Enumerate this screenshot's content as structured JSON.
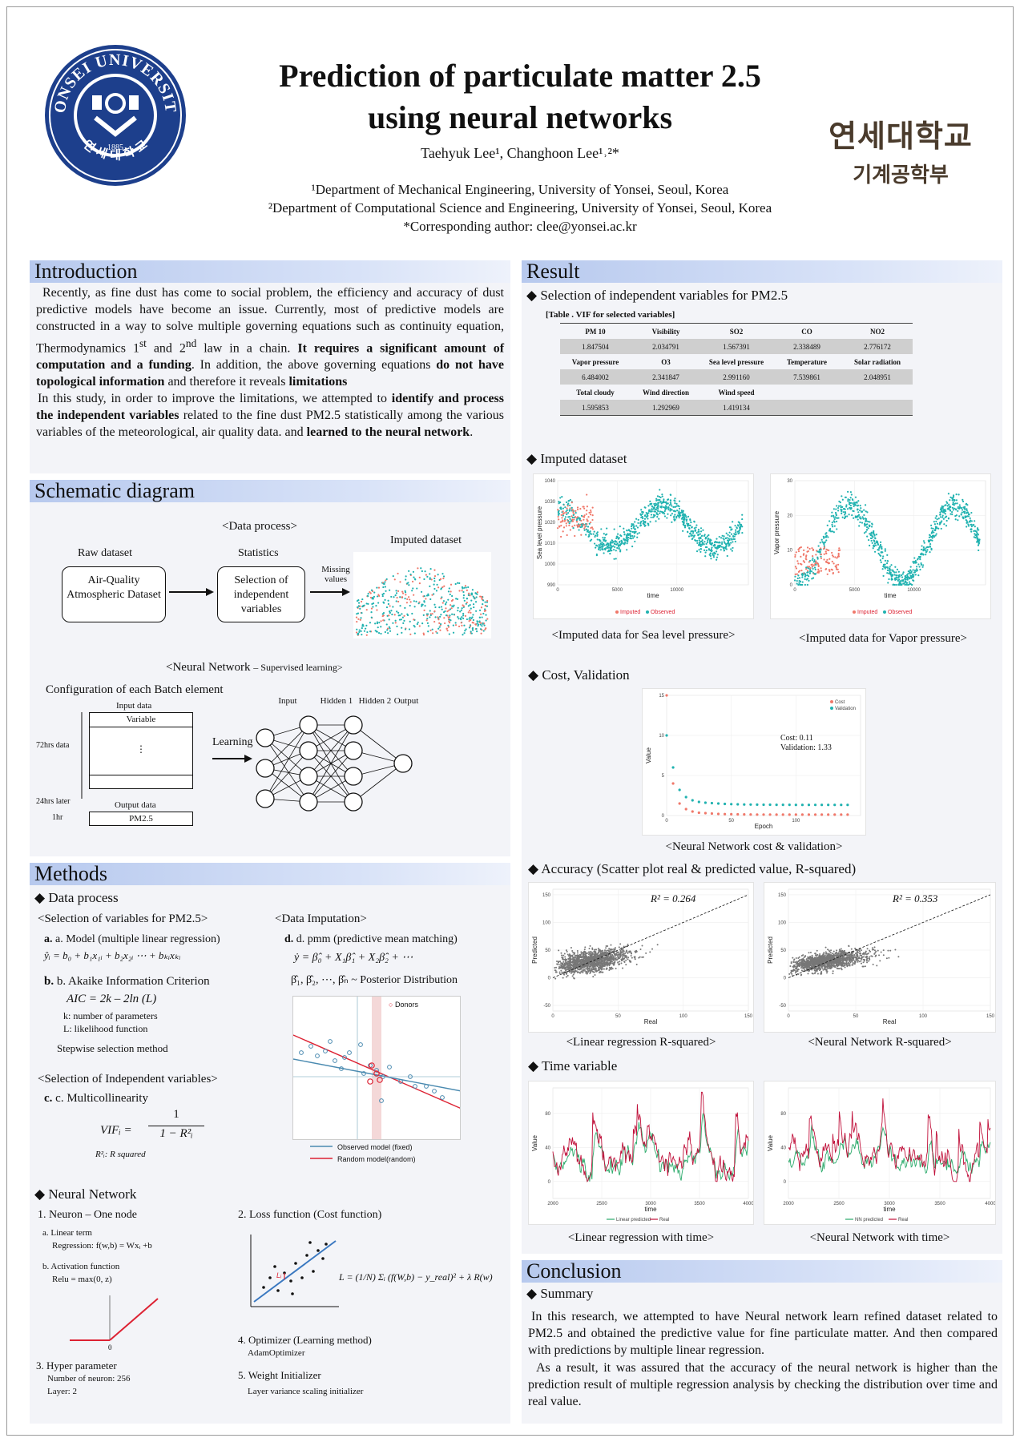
{
  "header": {
    "title_line1": "Prediction of particulate matter 2.5",
    "title_line2": "using neural networks",
    "authors": "Taehyuk Lee¹, Changhoon Lee¹˒²*",
    "affiliation1": "¹Department of Mechanical Engineering, University of Yonsei, Seoul, Korea",
    "affiliation2": "²Department of Computational Science and Engineering, University of Yonsei, Seoul, Korea",
    "corresponding": "*Corresponding author: clee@yonsei.ac.kr",
    "korean_univ": "연세대학교",
    "korean_dept": "기계공학부",
    "logo_text": "YONSEI UNIVERSITY",
    "logo_year": "1885",
    "logo_korean": "연 세 대 학 교"
  },
  "intro": {
    "title": "Introduction",
    "p1": "Recently, as fine dust has come to social problem, the efficiency and accuracy of dust predictive models have become an issue. Currently, most of predictive models are constructed in a way to solve multiple governing equations such as continuity equation, Thermodynamics 1st and 2nd law in a chain. It requires a significant amount of computation and a funding. In addition, the above governing equations do not have topological information and therefore it reveals limitations",
    "p2": "In this study, in order to improve the limitations, we attempted to identify and process the independent variables related to the fine dust PM2.5 statistically among the various variables of the meteorological, air quality data. and learned to the neural network."
  },
  "schematic": {
    "title": "Schematic diagram",
    "data_process": "<Data process>",
    "raw_label": "Raw dataset",
    "raw_box": "Air-Quality Atmospheric Dataset",
    "stat_label": "Statistics",
    "stat_box": "Selection of independent variables",
    "missing": "Missing values",
    "imputed_label": "Imputed dataset",
    "nn_title": "<Neural Network",
    "nn_sub": "– Supervised learning>",
    "config": "Configuration of each Batch element",
    "input_data": "Input data",
    "variable": "Variable",
    "dots": "⋮",
    "hrs72": "72hrs data",
    "hrs24": "24hrs later",
    "hr1": "1hr",
    "output_data": "Output data",
    "pm25": "PM2.5",
    "learning": "Learning",
    "layers": [
      "Input",
      "Hidden 1",
      "Hidden 2",
      "Output"
    ]
  },
  "methods": {
    "title": "Methods",
    "data_process": "Data process",
    "sel_pm": "<Selection of variables for PM2.5>",
    "model_a": "a. Model (multiple linear regression)",
    "model_eq": "ŷᵢ = b₀ + b₁x₁ᵢ + b₂x₂ᵢ ⋯ + bₖᵢxₖᵢ",
    "aic_b": "b. Akaike Information Criterion",
    "aic_eq": "AIC = 2k – 2ln (L)",
    "aic_k": "k: number of parameters",
    "aic_l": "L: likelihood function",
    "stepwise": "Stepwise selection method",
    "sel_indep": "<Selection of Independent variables>",
    "multi_c": "c. Multicollinearity",
    "vif_lhs": "VIFᵢ =",
    "vif_num": "1",
    "vif_den": "1 − R²ᵢ",
    "r2_note": "R²ᵢ: R squared",
    "imputation": "<Data Imputation>",
    "pmm_d": "d. pmm (predictive mean matching)",
    "pmm_eq": "ẏ = β̂₀ + X₁β̂₁ + X₂β̂₂ + ⋯",
    "posterior": "β̂₁, β̂₂, ⋯, β̂ₙ ~ Posterior Distribution",
    "donors": "Donors",
    "observed_model": "Observed model (fixed)",
    "random_model": "Random model(random)",
    "nn": "Neural Network",
    "neuron": "1. Neuron – One node",
    "linear_term": "a. Linear term",
    "regression": "Regression: f(w,b) = Wxᵢ +b",
    "activation": "b. Activation function",
    "relu": "Relu = max(0, z)",
    "relu_zero": "0",
    "hyper": "3. Hyper parameter",
    "neurons": "Number of neuron: 256",
    "layer": "Layer: 2",
    "loss": "2. Loss function (Cost function)",
    "loss_eq": "L = (1/N) Σᵢ (f(W,b) − y_real)² + λ R(w)",
    "li": "Lᵢ",
    "optimizer": "4. Optimizer (Learning method)",
    "adam": "AdamOptimizer",
    "init": "5. Weight Initializer",
    "init_sub": "Layer variance scaling initializer"
  },
  "result": {
    "title": "Result",
    "selection": "Selection of  independent variables for PM2.5",
    "table_caption": "[Table . VIF for selected variables]",
    "table": [
      [
        "PM 10",
        "Visibility",
        "SO2",
        "CO",
        "NO2"
      ],
      [
        "1.847504",
        "2.034791",
        "1.567391",
        "2.338489",
        "2.776172"
      ],
      [
        "Vapor pressure",
        "O3",
        "Sea level pressure",
        "Temperature",
        "Solar radiation"
      ],
      [
        "6.484002",
        "2.341847",
        "2.991160",
        "7.539861",
        "2.048951"
      ],
      [
        "Total cloudy",
        "Wind direction",
        "Wind speed",
        "",
        ""
      ],
      [
        "1.595853",
        "1.292969",
        "1.419134",
        "",
        ""
      ]
    ],
    "imputed": "Imputed dataset",
    "cap_sea": "<Imputed data for Sea level pressure>",
    "cap_vapor": "<Imputed data for Vapor pressure>",
    "sea_ylabel": "Sea level pressure",
    "vapor_ylabel": "Vapor pressure",
    "time": "time",
    "legend_imputed": "Imputed",
    "legend_observed": "Observed",
    "cost_val": "Cost, Validation",
    "cost_text": "Cost: 0.11",
    "val_text": "Validation: 1.33",
    "legend_cost": "Cost",
    "legend_validation": "Validation",
    "value": "Value",
    "epoch": "Epoch",
    "cap_cost": "<Neural Network cost & validation>",
    "accuracy": "Accuracy (Scatter plot real & predicted value, R-squared)",
    "r2_lin": "R² = 0.264",
    "r2_nn": "R² = 0.353",
    "predicted": "Predicted",
    "real": "Real",
    "cap_lin_r2": "<Linear regression R-squared>",
    "cap_nn_r2": "<Neural Network R-squared>",
    "time_var": "Time variable",
    "legend_lin_pred": "Linear predicted",
    "legend_real": "Real",
    "legend_nn_pred": "NN predicted",
    "cap_lin_time": "<Linear regression with time>",
    "cap_nn_time": "<Neural Network with time>"
  },
  "conclusion": {
    "title": "Conclusion",
    "summary": "Summary",
    "p1": "In this research, we attempted to have Neural network learn refined dataset related to PM2.5 and obtained the predictive value for fine particulate matter. And then compared with predictions by multiple linear regression.",
    "p2": "As a result, it was assured that the accuracy of the neural network is higher than the prediction result of multiple regression analysis by checking the distribution over time and real value."
  },
  "colors": {
    "teal": "#20b2b0",
    "salmon": "#f0786a",
    "navy": "#1d3f8c",
    "green": "#2aaa6a",
    "crimson": "#c0103a"
  },
  "chart_data": [
    {
      "type": "scatter",
      "title": "",
      "ylabel": "Sea level pressure",
      "xlabel": "time",
      "xlim": [
        0,
        16000
      ],
      "ylim": [
        990,
        1040
      ],
      "xticks": [
        0,
        5000,
        10000
      ],
      "yticks": [
        990,
        1000,
        1010,
        1020,
        1030,
        1040
      ],
      "series": [
        {
          "name": "Imputed"
        },
        {
          "name": "Observed"
        }
      ]
    },
    {
      "type": "scatter",
      "title": "",
      "ylabel": "Vapor pressure",
      "xlabel": "time",
      "xlim": [
        0,
        16000
      ],
      "ylim": [
        0,
        30
      ],
      "xticks": [
        0,
        5000,
        10000
      ],
      "yticks": [
        0,
        10,
        20,
        30
      ],
      "series": [
        {
          "name": "Imputed"
        },
        {
          "name": "Observed"
        }
      ]
    },
    {
      "type": "scatter",
      "xlabel": "Epoch",
      "ylabel": "Value",
      "xlim": [
        0,
        150
      ],
      "ylim": [
        0,
        15
      ],
      "xticks": [
        0,
        50,
        100
      ],
      "yticks": [
        0,
        5,
        10,
        15
      ],
      "series": [
        {
          "name": "Cost",
          "x": [
            0,
            5,
            10,
            15,
            20,
            25,
            30,
            35,
            40,
            45,
            50,
            55,
            60,
            65,
            70,
            75,
            80,
            85,
            90,
            95,
            100,
            105,
            110,
            115,
            120,
            125,
            130,
            135,
            140
          ],
          "values": [
            15,
            4,
            1.5,
            0.8,
            0.5,
            0.35,
            0.3,
            0.25,
            0.2,
            0.18,
            0.16,
            0.15,
            0.14,
            0.13,
            0.12,
            0.12,
            0.12,
            0.11,
            0.11,
            0.11,
            0.11,
            0.11,
            0.11,
            0.11,
            0.11,
            0.11,
            0.11,
            0.11,
            0.11
          ]
        },
        {
          "name": "Validation",
          "x": [
            0,
            5,
            10,
            15,
            20,
            25,
            30,
            35,
            40,
            45,
            50,
            55,
            60,
            65,
            70,
            75,
            80,
            85,
            90,
            95,
            100,
            105,
            110,
            115,
            120,
            125,
            130,
            135,
            140
          ],
          "values": [
            10,
            6,
            3.2,
            2.3,
            1.9,
            1.7,
            1.6,
            1.55,
            1.5,
            1.45,
            1.42,
            1.4,
            1.38,
            1.37,
            1.36,
            1.35,
            1.35,
            1.34,
            1.34,
            1.34,
            1.33,
            1.33,
            1.33,
            1.33,
            1.33,
            1.33,
            1.33,
            1.33,
            1.33
          ]
        }
      ]
    },
    {
      "type": "scatter",
      "xlabel": "Real",
      "ylabel": "Predicted",
      "xlim": [
        0,
        150
      ],
      "ylim": [
        -60,
        160
      ],
      "xticks": [
        0,
        50,
        100,
        150
      ],
      "yticks": [
        -50,
        0,
        50,
        100,
        150
      ],
      "r_squared": 0.264
    },
    {
      "type": "scatter",
      "xlabel": "Real",
      "ylabel": "Predicted",
      "xlim": [
        0,
        150
      ],
      "ylim": [
        -60,
        160
      ],
      "xticks": [
        0,
        50,
        100,
        150
      ],
      "yticks": [
        -50,
        0,
        50,
        100,
        150
      ],
      "r_squared": 0.353
    },
    {
      "type": "line",
      "xlabel": "time",
      "ylabel": "Value",
      "xlim": [
        2000,
        4000
      ],
      "ylim": [
        -20,
        110
      ],
      "xticks": [
        2000,
        2500,
        3000,
        3500,
        4000
      ],
      "yticks": [
        0,
        40,
        80
      ],
      "series": [
        {
          "name": "Linear predicted"
        },
        {
          "name": "Real"
        }
      ]
    },
    {
      "type": "line",
      "xlabel": "time",
      "ylabel": "Value",
      "xlim": [
        2000,
        4000
      ],
      "ylim": [
        -20,
        110
      ],
      "xticks": [
        2000,
        2500,
        3000,
        3500,
        4000
      ],
      "yticks": [
        0,
        40,
        80
      ],
      "series": [
        {
          "name": "NN predicted"
        },
        {
          "name": "Real"
        }
      ]
    }
  ]
}
